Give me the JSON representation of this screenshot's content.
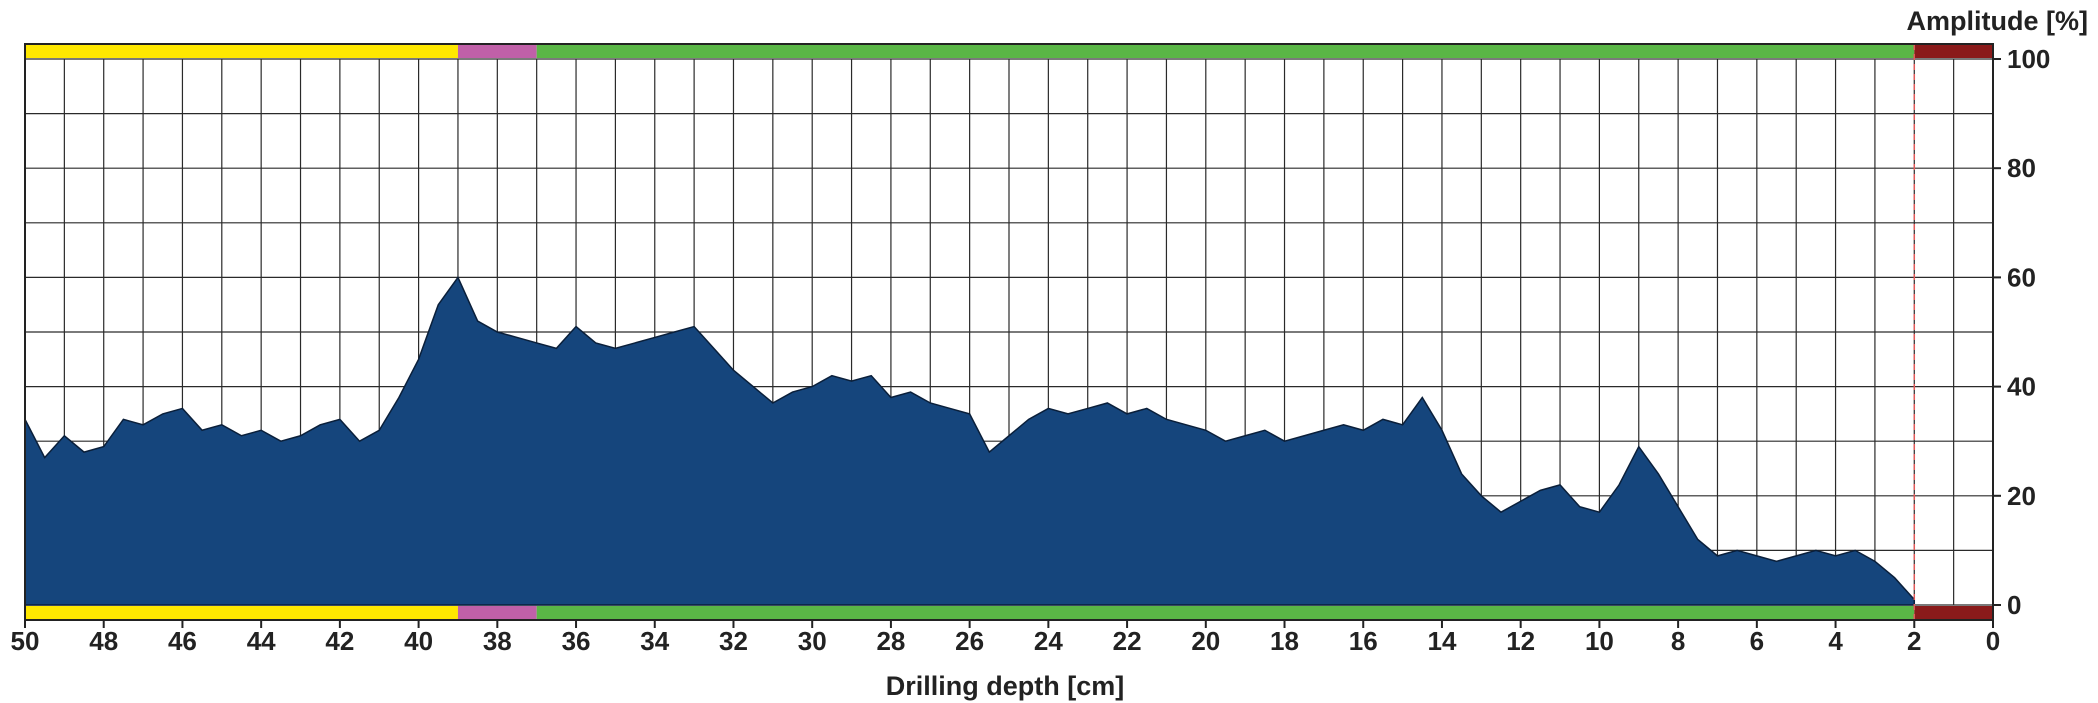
{
  "chart_data": {
    "type": "area",
    "xlabel": "Drilling depth [cm]",
    "ylabel": "Amplitude [%]",
    "xlim": [
      50,
      0
    ],
    "ylim": [
      0,
      100
    ],
    "x_reversed": true,
    "x_ticks": [
      50,
      48,
      46,
      44,
      42,
      40,
      38,
      36,
      34,
      32,
      30,
      28,
      26,
      24,
      22,
      20,
      18,
      16,
      14,
      12,
      10,
      8,
      6,
      4,
      2,
      0
    ],
    "y_ticks": [
      0,
      20,
      40,
      60,
      80,
      100
    ],
    "grid": true,
    "fill_color": "#15457c",
    "marker_lines_x": [
      50,
      2
    ],
    "marker_line_color": "#e05a5a",
    "zones": [
      {
        "from": 50,
        "to": 39,
        "color": "#ffe800"
      },
      {
        "from": 39,
        "to": 37,
        "color": "#c060a8"
      },
      {
        "from": 37,
        "to": 2,
        "color": "#5ab646"
      },
      {
        "from": 2,
        "to": 0,
        "color": "#8a1a1a"
      }
    ],
    "series": [
      {
        "x": [
          50,
          49.5,
          49,
          48.5,
          48,
          47.5,
          47,
          46.5,
          46,
          45.5,
          45,
          44.5,
          44,
          43.5,
          43,
          42.5,
          42,
          41.5,
          41,
          40.5,
          40,
          39.5,
          39,
          38.5,
          38,
          37.5,
          37,
          36.5,
          36,
          35.5,
          35,
          34.5,
          34,
          33.5,
          33,
          32.5,
          32,
          31.5,
          31,
          30.5,
          30,
          29.5,
          29,
          28.5,
          28,
          27.5,
          27,
          26.5,
          26,
          25.5,
          25,
          24.5,
          24,
          23.5,
          23,
          22.5,
          22,
          21.5,
          21,
          20.5,
          20,
          19.5,
          19,
          18.5,
          18,
          17.5,
          17,
          16.5,
          16,
          15.5,
          15,
          14.5,
          14,
          13.5,
          13,
          12.5,
          12,
          11.5,
          11,
          10.5,
          10,
          9.5,
          9,
          8.5,
          8,
          7.5,
          7,
          6.5,
          6,
          5.5,
          5,
          4.5,
          4,
          3.5,
          3,
          2.5,
          2
        ],
        "values": [
          34,
          27,
          31,
          28,
          29,
          34,
          33,
          35,
          36,
          32,
          33,
          31,
          32,
          30,
          31,
          33,
          34,
          30,
          32,
          38,
          45,
          55,
          60,
          52,
          50,
          49,
          48,
          47,
          51,
          48,
          47,
          48,
          49,
          50,
          51,
          47,
          43,
          40,
          37,
          39,
          40,
          42,
          41,
          42,
          38,
          39,
          37,
          36,
          35,
          28,
          31,
          34,
          36,
          35,
          36,
          37,
          35,
          36,
          34,
          33,
          32,
          30,
          31,
          32,
          30,
          31,
          32,
          33,
          32,
          34,
          33,
          38,
          32,
          24,
          20,
          17,
          19,
          21,
          22,
          18,
          17,
          22,
          29,
          24,
          18,
          12,
          9,
          10,
          9,
          8,
          9,
          10,
          9,
          10,
          8,
          5,
          1
        ]
      }
    ]
  }
}
